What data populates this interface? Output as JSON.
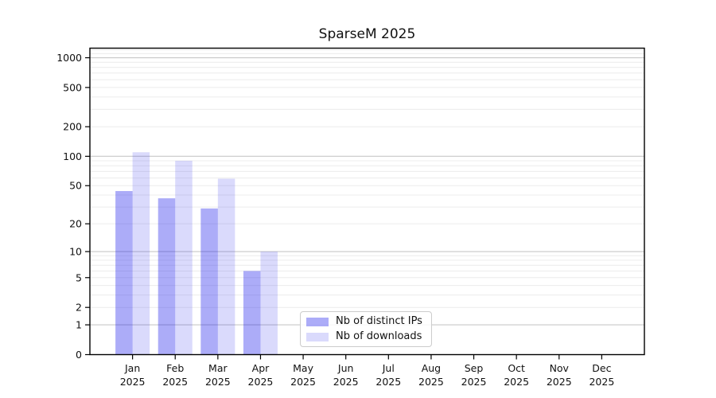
{
  "chart_data": {
    "type": "bar",
    "title": "SparseM 2025",
    "categories": [
      "Jan",
      "Feb",
      "Mar",
      "Apr",
      "May",
      "Jun",
      "Jul",
      "Aug",
      "Sep",
      "Oct",
      "Nov",
      "Dec"
    ],
    "x_tick_year": "2025",
    "series": [
      {
        "name": "Nb of distinct IPs",
        "color": "rgba(30,30,235,0.37)",
        "values": [
          44,
          37,
          29,
          6,
          0,
          0,
          0,
          0,
          0,
          0,
          0,
          0
        ]
      },
      {
        "name": "Nb of downloads",
        "color": "rgba(30,30,235,0.165)",
        "values": [
          110,
          90,
          59,
          10,
          0,
          0,
          0,
          0,
          0,
          0,
          0,
          0
        ]
      }
    ],
    "xlabel": "",
    "ylabel": "",
    "yscale": "log1p",
    "yticks": [
      0,
      1,
      2,
      5,
      10,
      20,
      50,
      100,
      200,
      500,
      1000
    ],
    "ylim": [
      0,
      1250
    ],
    "grid": true,
    "legend_position": "inside lower-center-left",
    "colors": {
      "major_grid": "#c8c8c8",
      "minor_grid": "#ececec",
      "spine": "#000000",
      "text": "#111111"
    }
  }
}
